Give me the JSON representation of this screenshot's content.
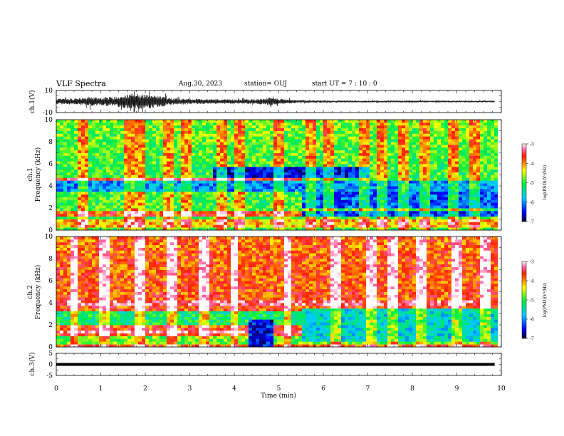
{
  "header": {
    "title": "VLF Spectra",
    "date": "Aug.30, 2023",
    "station": "station= OUJ",
    "start_ut": "start  UT =   7 : 10 : 0"
  },
  "chart_data": [
    {
      "type": "line",
      "ylabel": "ch.1(V)",
      "ylim": [
        -10,
        10
      ],
      "yticks": [
        "10",
        "-10"
      ],
      "x_range_min": [
        0,
        10
      ],
      "data_end_min": 9.85,
      "envelope_V": [
        [
          0.0,
          2.5
        ],
        [
          0.5,
          3.0
        ],
        [
          0.8,
          4.5
        ],
        [
          1.0,
          3.5
        ],
        [
          1.3,
          4.5
        ],
        [
          1.6,
          6.5
        ],
        [
          1.8,
          7.5
        ],
        [
          2.0,
          6.5
        ],
        [
          2.3,
          5.0
        ],
        [
          2.5,
          4.0
        ],
        [
          2.7,
          3.0
        ],
        [
          3.0,
          2.5
        ],
        [
          3.5,
          2.2
        ],
        [
          4.0,
          2.0
        ],
        [
          4.5,
          2.2
        ],
        [
          4.8,
          3.5
        ],
        [
          5.0,
          2.5
        ],
        [
          5.5,
          1.2
        ],
        [
          6.0,
          1.0
        ],
        [
          7.0,
          0.9
        ],
        [
          8.0,
          0.9
        ],
        [
          9.0,
          0.8
        ],
        [
          9.85,
          0.8
        ]
      ]
    },
    {
      "type": "heatmap",
      "ylabel": "ch.1\nFrequency (kHz)",
      "ylim": [
        0,
        10
      ],
      "yticks": [
        "0",
        "2",
        "4",
        "6",
        "8",
        "10"
      ],
      "colorbar": {
        "label": "log(PSD)(V²/Hz)",
        "range": [
          -7,
          -3
        ],
        "ticks": [
          "-3",
          "-4",
          "-5",
          "-6",
          "-7"
        ]
      },
      "background_level": -5.0,
      "bands_kHz_level": [
        {
          "f": [
            0.3,
            1.0
          ],
          "t": [
            0,
            10
          ],
          "level": -4.2
        },
        {
          "f": [
            1.2,
            1.8
          ],
          "t": [
            0,
            5.5
          ],
          "level": -3.8
        },
        {
          "f": [
            1.2,
            1.8
          ],
          "t": [
            5.5,
            10
          ],
          "level": -6.3
        },
        {
          "f": [
            2.0,
            3.5
          ],
          "t": [
            5.5,
            10
          ],
          "level": -6.2
        },
        {
          "f": [
            3.6,
            4.4
          ],
          "t": [
            0,
            10
          ],
          "level": -6.0
        },
        {
          "f": [
            4.4,
            4.8
          ],
          "t": [
            0,
            5.5
          ],
          "level": -3.6
        },
        {
          "f": [
            4.8,
            5.8
          ],
          "t": [
            3.5,
            7.0
          ],
          "level": -6.5
        }
      ],
      "bursts_min": [
        0.6,
        1.6,
        1.9,
        2.5,
        2.9,
        3.7,
        4.1,
        5.0,
        5.7,
        6.1,
        6.9,
        7.3,
        7.8,
        8.3,
        8.9,
        9.4
      ]
    },
    {
      "type": "heatmap",
      "ylabel": "ch.2\nFrequency (kHz)",
      "ylim": [
        0,
        10
      ],
      "yticks": [
        "0",
        "2",
        "4",
        "6",
        "8",
        "10"
      ],
      "colorbar": {
        "label": "log(PSD)(V²/Hz)",
        "range": [
          -7,
          -3
        ],
        "ticks": [
          "-3",
          "-4",
          "-5",
          "-6",
          "-7"
        ]
      },
      "background_level": -3.8,
      "bands_kHz_level": [
        {
          "f": [
            0.2,
            1.0
          ],
          "t": [
            0,
            10
          ],
          "level": -4.8
        },
        {
          "f": [
            1.2,
            1.6
          ],
          "t": [
            0,
            5.5
          ],
          "level": -3.2
        },
        {
          "f": [
            2.0,
            3.2
          ],
          "t": [
            0,
            5.5
          ],
          "level": -5.2
        },
        {
          "f": [
            0.5,
            3.5
          ],
          "t": [
            5.5,
            10
          ],
          "level": -5.6
        },
        {
          "f": [
            3.8,
            4.3
          ],
          "t": [
            0,
            10
          ],
          "level": -3.4
        },
        {
          "f": [
            0.0,
            2.5
          ],
          "t": [
            4.3,
            4.9
          ],
          "level": -6.5
        }
      ],
      "bursts_min": [
        0.4,
        1.1,
        1.9,
        2.6,
        3.3,
        4.0,
        5.2,
        6.3,
        7.1,
        7.6,
        8.2,
        9.0,
        9.6
      ]
    },
    {
      "type": "line",
      "ylabel": "ch.3(V)",
      "ylim": [
        -5,
        5
      ],
      "yticks": [
        "5",
        "0",
        "-5"
      ],
      "x": [
        0,
        9.85
      ],
      "y": [
        0,
        0
      ],
      "xlabel": "Time (min)",
      "xticks": [
        "0",
        "1",
        "2",
        "3",
        "4",
        "5",
        "6",
        "7",
        "8",
        "9",
        "10"
      ]
    }
  ]
}
